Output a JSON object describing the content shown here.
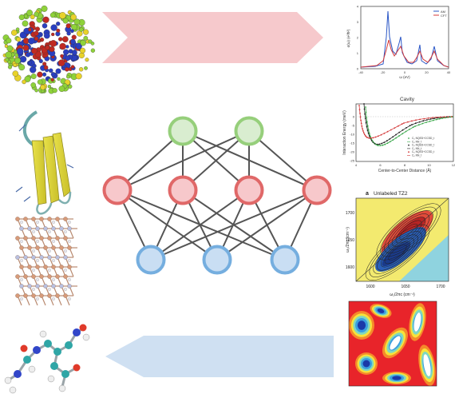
{
  "colors": {
    "arrow_top": "#f6c9cc",
    "arrow_bottom": "#cfe0f2",
    "node_green_stroke": "#96cf7b",
    "node_green_fill": "#d9edd0",
    "node_red_stroke": "#e06868",
    "node_red_fill": "#f7c8cb",
    "node_blue_stroke": "#75aedf",
    "node_blue_fill": "#c9def3",
    "edge": "#555555"
  },
  "panels": {
    "spectrum": {
      "ylabel": "σ(ω) (e²/ħ²)",
      "xlabel": "ω (eV)",
      "xticks": [
        "-40",
        "-20",
        "0",
        "20",
        "40"
      ],
      "yticks": [
        "0",
        "1",
        "2",
        "3",
        "4"
      ],
      "legend": [
        "AM",
        "CFT"
      ]
    },
    "cavity": {
      "title": "Cavity",
      "ylabel": "Interaction Energy (meV)",
      "xlabel": "Center-to-Center Distance (Å)",
      "yticks": [
        "0",
        "-5",
        "-10",
        "-15",
        "-20",
        "-25"
      ],
      "xticks": [
        "4",
        "6",
        "8",
        "10",
        "12"
      ],
      "legend": [
        "C₆ NQED+CCSD_t",
        "C₆ NN_t",
        "C₆ NQED+CCSD_t",
        "C₆ NN_t",
        "C₆ NQED+CCSD_t",
        "C₆ NN_t"
      ]
    },
    "ir2d": {
      "label": "a",
      "title": "Unlabeled TZ2",
      "ylabel": "ω₃/2πc (cm⁻¹)",
      "xlabel": "ω₁/2πc (cm⁻¹)",
      "yticks": [
        "1700",
        "1650",
        "1600"
      ],
      "xticks": [
        "1600",
        "1650",
        "1700"
      ]
    }
  }
}
